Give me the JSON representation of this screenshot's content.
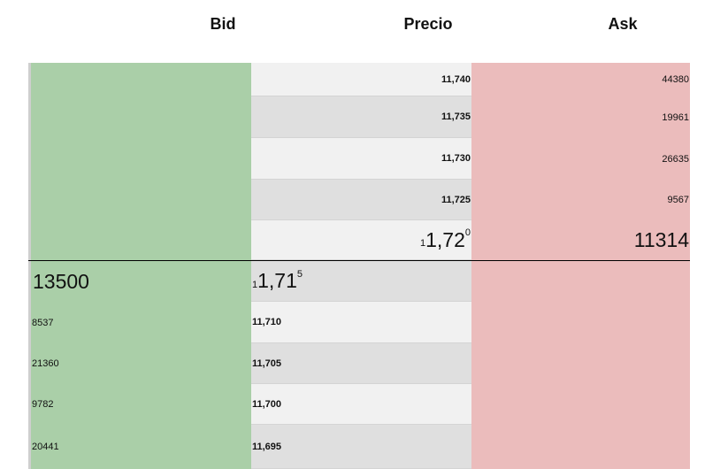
{
  "headers": {
    "bid": "Bid",
    "precio": "Precio",
    "ask": "Ask"
  },
  "ask_rows": [
    {
      "price": "11,740",
      "ask": "44380",
      "shade": "light"
    },
    {
      "price": "11,735",
      "ask": "19961",
      "shade": "dark"
    },
    {
      "price": "11,730",
      "ask": "26635",
      "shade": "light"
    },
    {
      "price": "11,725",
      "ask": "9567",
      "shade": "dark"
    }
  ],
  "best_ask": {
    "price_prefix": "1",
    "price_main": "1,72",
    "price_sup": "0",
    "ask": "11314"
  },
  "best_bid": {
    "bid": "13500",
    "price_prefix": "1",
    "price_main": "1,71",
    "price_sup": "5"
  },
  "bid_rows": [
    {
      "bid": "8537",
      "price": "11,710",
      "shade": "light"
    },
    {
      "bid": "21360",
      "price": "11,705",
      "shade": "dark"
    },
    {
      "bid": "9782",
      "price": "11,700",
      "shade": "light"
    },
    {
      "bid": "20441",
      "price": "11,695",
      "shade": "dark"
    }
  ],
  "colors": {
    "bid": "#aacfa8",
    "ask": "#ebbcbc",
    "row_light": "#f1f1f1",
    "row_dark": "#dfdfdf"
  }
}
